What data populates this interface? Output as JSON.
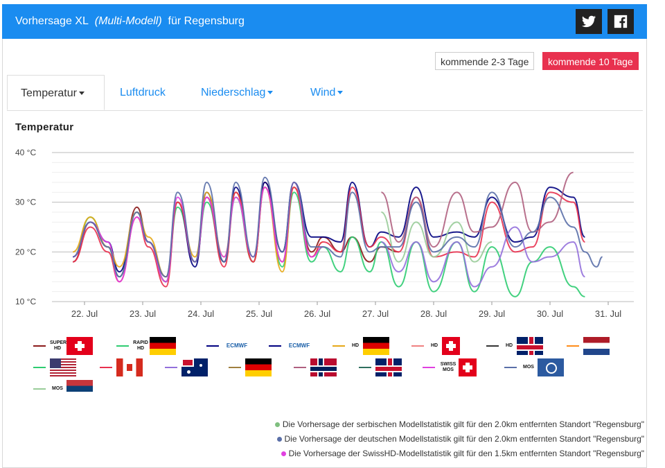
{
  "header": {
    "title_prefix": "Vorhersage XL",
    "title_italic": "(Multi-Modell)",
    "title_suffix": "für Regensburg"
  },
  "range_buttons": [
    "kommende 2-3 Tage",
    "kommende 10 Tage"
  ],
  "tabs": [
    "Temperatur",
    "Luftdruck",
    "Niederschlag",
    "Wind"
  ],
  "section_title": "Temperatur",
  "legend_badges": {
    "super_hd": "SUPER HD",
    "rapid_hd": "RAPID HD",
    "ecmwf": "ECMWF",
    "hd": "HD",
    "swiss_mos": "SWISS MOS",
    "mos": "MOS"
  },
  "notes": [
    {
      "text": "Die Vorhersage der serbischen Modellstatistik gilt für den 2.0km entfernten Standort \"Regensburg\"",
      "color": "#7fbf7f"
    },
    {
      "text": "Die Vorhersage der deutschen Modellstatistik gilt für den 2.0km entfernten Standort \"Regensburg\"",
      "color": "#5a6fa8"
    },
    {
      "text": "Die Vorhersage der SwissHD-Modellstatistik gilt für den 1.5km entfernten Standort \"Regensburg\"",
      "color": "#e040e0"
    }
  ],
  "chart_data": {
    "type": "line",
    "title": "Temperatur",
    "y_ticks": [
      "40 °C",
      "30 °C",
      "20 °C",
      "10 °C"
    ],
    "ylim": [
      10,
      40
    ],
    "x_ticks": [
      "22. Jul",
      "23. Jul",
      "24. Jul",
      "25. Jul",
      "26. Jul",
      "27. Jul",
      "28. Jul",
      "29. Jul",
      "30. Jul",
      "31. Jul"
    ],
    "xlim": [
      "21. Jul 12:00",
      "31. Jul 12:00"
    ],
    "series": [
      {
        "color": "#8b1a1a",
        "x": [
          0.3,
          0.6,
          0.9,
          1.1,
          1.4,
          1.6,
          1.9,
          2.1,
          2.4,
          2.6,
          2.9,
          3.1,
          3.4,
          3.6,
          3.9,
          4.1,
          4.4,
          4.6,
          4.9,
          5.1,
          5.4,
          5.6,
          5.9
        ],
        "y": [
          18,
          26,
          21,
          15,
          29,
          22,
          14,
          30,
          18,
          31,
          18,
          32,
          18,
          34,
          20,
          33,
          20,
          23,
          20,
          23,
          18,
          21,
          20
        ]
      },
      {
        "color": "#2ecc71",
        "x": [
          0.3,
          0.6,
          0.9,
          1.1,
          1.4,
          1.6,
          1.9,
          2.1,
          2.4,
          2.6,
          2.9,
          3.1,
          3.4,
          3.6,
          3.9,
          4.1,
          4.4,
          4.6,
          4.9,
          5.1,
          5.4,
          5.6,
          5.9,
          6.2,
          6.5,
          6.9,
          7.2,
          7.5,
          7.9,
          8.2,
          8.5,
          8.9,
          9.1
        ],
        "y": [
          19,
          27,
          21,
          15,
          28,
          22,
          14,
          29,
          18,
          30,
          18,
          31,
          18,
          33,
          17,
          32,
          18,
          21,
          16,
          23,
          16,
          22,
          13,
          22,
          12,
          22,
          12,
          21,
          11,
          18,
          21,
          13,
          11
        ]
      },
      {
        "color": "#000080",
        "x": [
          0.3,
          0.6,
          0.9,
          1.1,
          1.4,
          1.6,
          1.9,
          2.1,
          2.4,
          2.6,
          2.9,
          3.1,
          3.4,
          3.6,
          3.9,
          4.1,
          4.4,
          4.6,
          4.9,
          5.1,
          5.4,
          5.6,
          5.9,
          6.2,
          6.5,
          6.9,
          7.2,
          7.5,
          7.9,
          8.2,
          8.5,
          8.9,
          9.1
        ],
        "y": [
          19,
          26,
          22,
          16,
          28,
          22,
          15,
          30,
          17,
          32,
          18,
          33,
          18,
          34,
          20,
          34,
          23,
          23,
          22,
          34,
          21,
          24,
          23,
          33,
          23,
          24,
          23,
          31,
          22,
          23,
          33,
          31,
          23
        ]
      },
      {
        "color": "#e6a817",
        "x": [
          0.3,
          0.6,
          0.9,
          1.1,
          1.4,
          1.6,
          1.9,
          2.1,
          2.4,
          2.6,
          2.9,
          3.1,
          3.4,
          3.6,
          3.9,
          4.1,
          4.4,
          4.6
        ],
        "y": [
          20,
          27,
          21,
          17,
          28,
          23,
          15,
          30,
          19,
          32,
          19,
          32,
          18,
          33,
          16,
          33,
          19,
          22
        ]
      },
      {
        "color": "#e8314f",
        "x": [
          0.3,
          0.6,
          0.9,
          1.1,
          1.4,
          1.6,
          1.9,
          2.1,
          2.4,
          2.6,
          2.9,
          3.1,
          3.4,
          3.6,
          3.9,
          4.1,
          4.4,
          4.6,
          4.9,
          5.1,
          5.4,
          5.6,
          5.9,
          6.2,
          6.5,
          6.9,
          7.2,
          7.5,
          7.9,
          8.2,
          8.5,
          8.9,
          9.1
        ],
        "y": [
          18,
          25,
          20,
          14,
          27,
          21,
          13,
          30,
          18,
          31,
          17,
          32,
          18,
          33,
          18,
          33,
          19,
          22,
          20,
          33,
          21,
          23,
          20,
          31,
          19,
          20,
          19,
          30,
          20,
          21,
          32,
          30,
          22
        ]
      },
      {
        "color": "#b06080",
        "x": [
          5.6,
          5.9,
          6.2,
          6.5,
          6.9,
          7.2,
          7.5,
          7.9,
          8.2,
          8.5,
          8.9
        ],
        "y": [
          32,
          22,
          31,
          21,
          32,
          24,
          25,
          34,
          24,
          26,
          36
        ]
      },
      {
        "color": "#9370db",
        "x": [
          5.6,
          5.9,
          6.2,
          6.5,
          6.9,
          7.2,
          7.5,
          7.9,
          8.2,
          8.5,
          8.9,
          9.1
        ],
        "y": [
          22,
          16,
          22,
          14,
          22,
          13,
          17,
          25,
          18,
          19,
          22,
          15
        ]
      },
      {
        "color": "#99cc99",
        "x": [
          5.6,
          5.9,
          6.2,
          6.5,
          6.9,
          7.2,
          7.5
        ],
        "y": [
          28,
          18,
          26,
          19,
          26,
          18,
          22
        ]
      },
      {
        "color": "#e040e0",
        "x": [
          0.3,
          0.6,
          0.9,
          1.1,
          1.4,
          1.6,
          1.9,
          2.1,
          2.4,
          2.6,
          2.9,
          3.1,
          3.4,
          3.6,
          3.9,
          4.1,
          4.4,
          4.6
        ],
        "y": [
          19,
          26,
          22,
          14,
          27,
          22,
          14,
          31,
          18,
          31,
          19,
          31,
          19,
          33,
          18,
          34,
          19,
          21
        ]
      },
      {
        "color": "#5a6fa8",
        "x": [
          0.3,
          0.6,
          0.9,
          1.1,
          1.4,
          1.6,
          1.9,
          2.1,
          2.4,
          2.6,
          2.9,
          3.1,
          3.4,
          3.6,
          3.9,
          4.1,
          4.4,
          4.6,
          4.9,
          5.1,
          5.4,
          5.6,
          5.9,
          6.2,
          6.5,
          6.9,
          7.2,
          7.5,
          7.9,
          8.2,
          8.5,
          8.9,
          9.1,
          9.3,
          9.4
        ],
        "y": [
          19,
          26,
          21,
          15,
          28,
          22,
          15,
          32,
          18,
          34,
          18,
          34,
          19,
          35,
          20,
          34,
          21,
          21,
          19,
          32,
          20,
          21,
          21,
          30,
          20,
          23,
          21,
          32,
          21,
          24,
          31,
          25,
          20,
          17,
          19
        ]
      }
    ]
  }
}
